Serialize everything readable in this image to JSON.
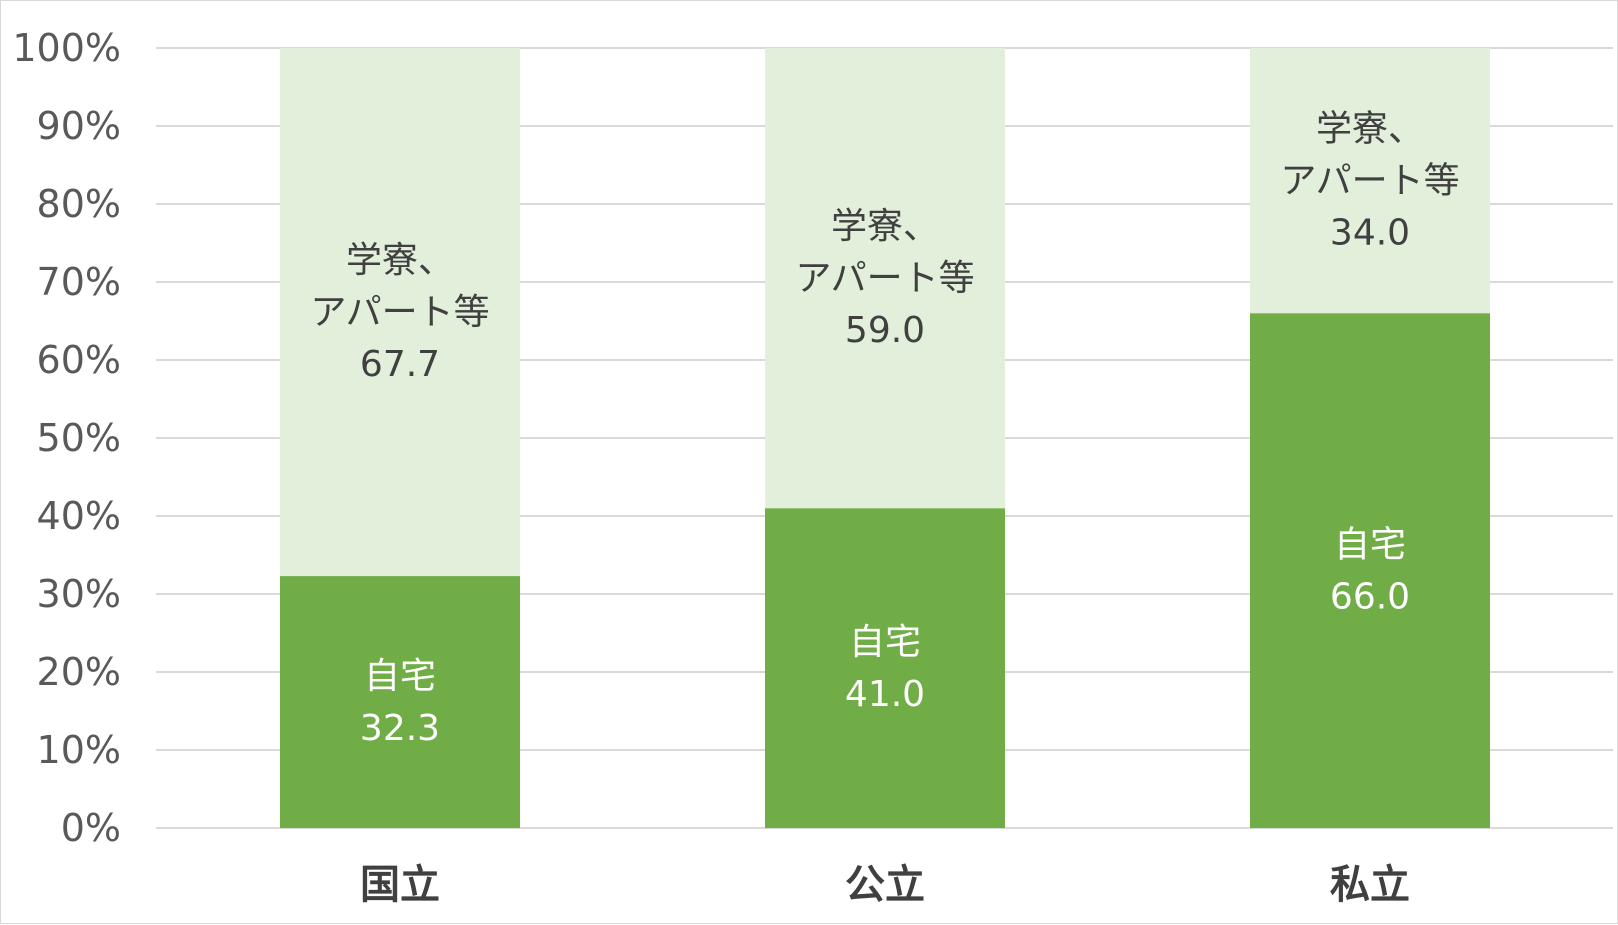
{
  "chart_data": {
    "type": "bar",
    "stacked": true,
    "categories": [
      "国立",
      "公立",
      "私立"
    ],
    "series": [
      {
        "name": "自宅",
        "values": [
          32.3,
          41.0,
          66.0
        ],
        "value_labels": [
          "32.3",
          "41.0",
          "66.0"
        ],
        "color": "#70ad47",
        "label_color": "#ffffff",
        "label_lines": [
          "自宅"
        ]
      },
      {
        "name": "学寮、アパート等",
        "values": [
          67.7,
          59.0,
          34.0
        ],
        "value_labels": [
          "67.7",
          "59.0",
          "34.0"
        ],
        "color": "#e2efda",
        "label_color": "#404040",
        "label_lines": [
          "学寮、",
          "アパート等"
        ]
      }
    ],
    "yticks": [
      "0%",
      "10%",
      "20%",
      "30%",
      "40%",
      "50%",
      "60%",
      "70%",
      "80%",
      "90%",
      "100%"
    ],
    "ylim": [
      0,
      100
    ],
    "grid": true,
    "gridline_color": "#d9d9d9",
    "legend": "none"
  }
}
